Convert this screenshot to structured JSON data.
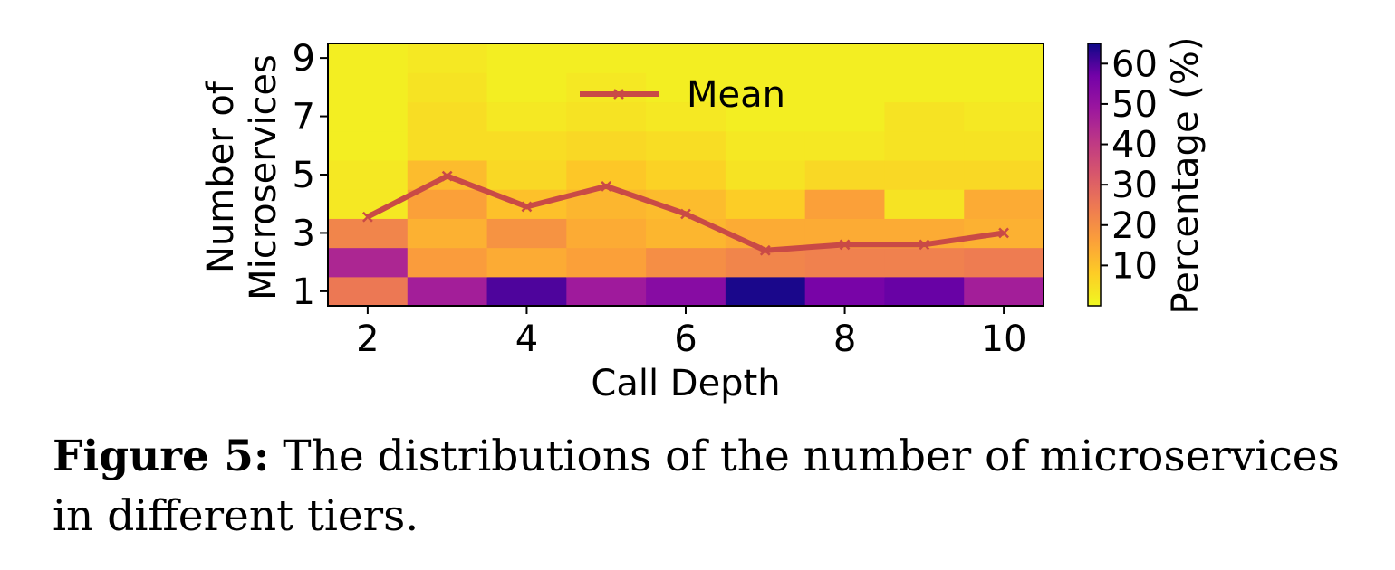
{
  "caption": {
    "label": "Figure 5:",
    "text": " The distributions of the number of microservices in different tiers."
  },
  "chart_data": {
    "type": "heatmap",
    "title": "",
    "xlabel": "Call Depth",
    "ylabel_lines": [
      "Number of",
      "Microservices"
    ],
    "x": [
      2,
      3,
      4,
      5,
      6,
      7,
      8,
      9,
      10
    ],
    "y": [
      1,
      2,
      3,
      4,
      5,
      6,
      7,
      8,
      9
    ],
    "x_ticks": [
      "2",
      "4",
      "6",
      "8",
      "10"
    ],
    "y_ticks": [
      "1",
      "3",
      "5",
      "7",
      "9"
    ],
    "xlim": [
      1.5,
      10.5
    ],
    "ylim": [
      0.5,
      9.5
    ],
    "grid": false,
    "colormap": "plasma_r",
    "colorbar": {
      "label": "Percentage (%)",
      "range": [
        0,
        65
      ],
      "ticks": [
        "10",
        "20",
        "30",
        "40",
        "50",
        "60"
      ]
    },
    "values_percent": [
      [
        25,
        47,
        60,
        48,
        53,
        64,
        56,
        58,
        47
      ],
      [
        45,
        17,
        14,
        16,
        20,
        22,
        23,
        23,
        24
      ],
      [
        22,
        13,
        19,
        14,
        12,
        14,
        14,
        14,
        13
      ],
      [
        3,
        16,
        10,
        12,
        11,
        8,
        16,
        4,
        14
      ],
      [
        3,
        11,
        6,
        9,
        7,
        4,
        6,
        6,
        6
      ],
      [
        2,
        5,
        5,
        6,
        5,
        3,
        3,
        4,
        4
      ],
      [
        2,
        5,
        3,
        4,
        3,
        2,
        2,
        4,
        3
      ],
      [
        2,
        4,
        2,
        3,
        2,
        2,
        2,
        2,
        2
      ],
      [
        2,
        3,
        2,
        2,
        2,
        2,
        2,
        2,
        2
      ]
    ],
    "series": [
      {
        "name": "Mean",
        "type": "line",
        "marker": "x",
        "color": "#c94a46",
        "x": [
          2,
          3,
          4,
          5,
          6,
          7,
          8,
          9,
          10
        ],
        "y": [
          3.55,
          4.95,
          3.9,
          4.6,
          3.65,
          2.4,
          2.6,
          2.6,
          3.0
        ]
      }
    ],
    "legend": {
      "position": "top-center"
    }
  }
}
